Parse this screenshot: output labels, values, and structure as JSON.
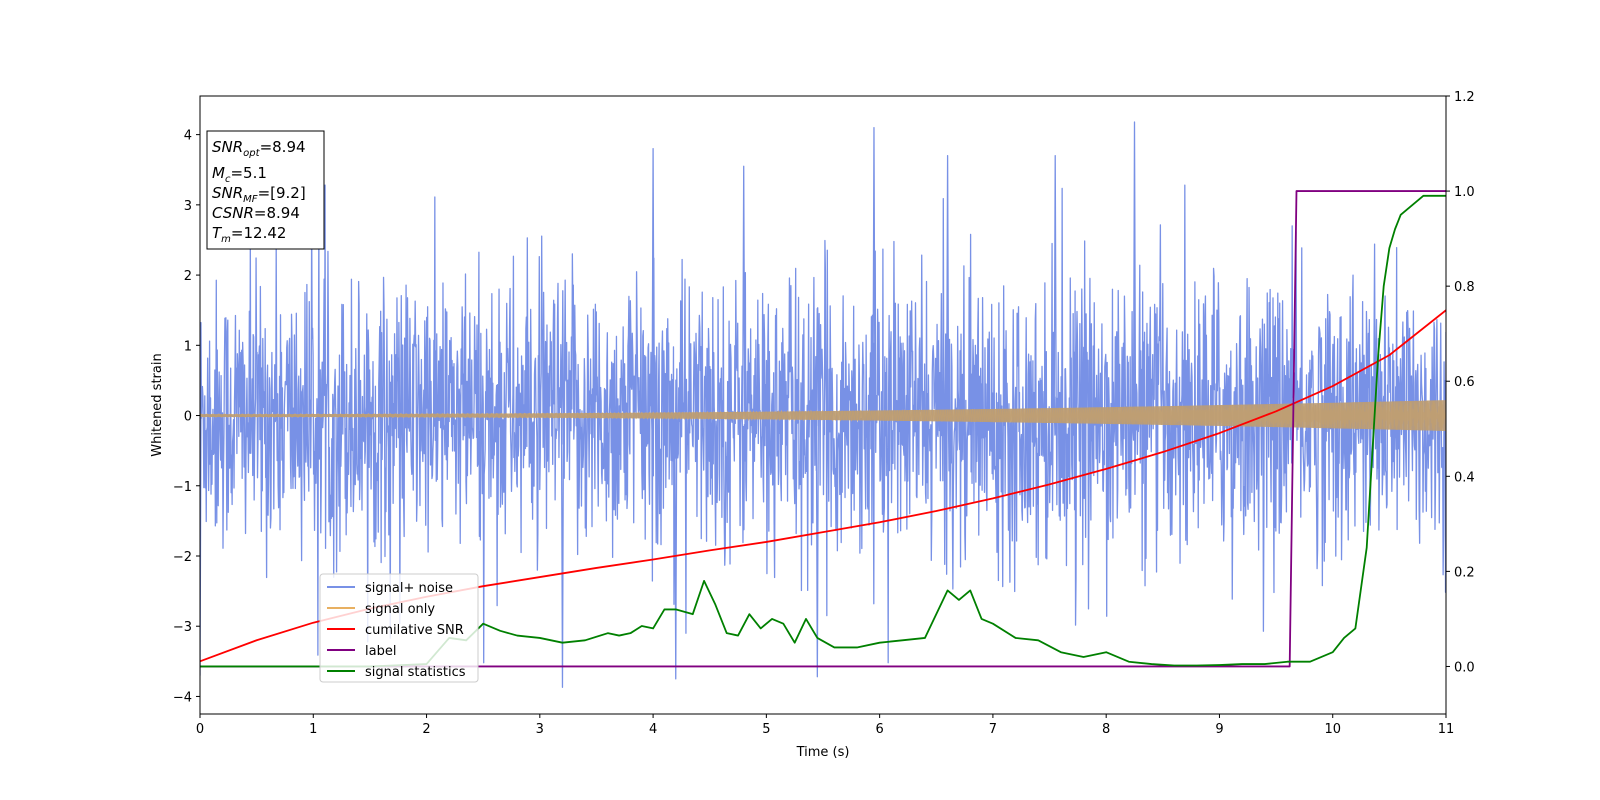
{
  "chart_data": {
    "type": "line",
    "xlabel": "Time (s)",
    "ylabel": "Whitened strain",
    "xlim": [
      0,
      11
    ],
    "ylim_left": [
      -4.25,
      4.55
    ],
    "ylim_right": [
      -0.1,
      1.2
    ],
    "x_ticks": [
      0,
      1,
      2,
      3,
      4,
      5,
      6,
      7,
      8,
      9,
      10,
      11
    ],
    "y_ticks_left": [
      -4,
      -3,
      -2,
      -1,
      0,
      1,
      2,
      3,
      4
    ],
    "y_ticks_right": [
      "0.0",
      "0.2",
      "0.4",
      "0.6",
      "0.8",
      "1.0",
      "1.2"
    ],
    "y_ticks_right_values": [
      0.0,
      0.2,
      0.4,
      0.6,
      0.8,
      1.0,
      1.2
    ],
    "info_box": {
      "snr_opt": {
        "base": "SNR",
        "sub": "opt",
        "value": "=8.94"
      },
      "mc": {
        "base": "M",
        "sub": "c",
        "value": "=5.1"
      },
      "snr_mf": {
        "base": "SNR",
        "sub": "MF",
        "value": "=[9.2]"
      },
      "csnr": {
        "base": "CSNR",
        "value": "=8.94"
      },
      "tm": {
        "base": "T",
        "sub": "m",
        "value": "=12.42"
      }
    },
    "series": [
      {
        "name": "signal+ noise",
        "axis": "left",
        "color": "#7891e6",
        "kind": "noise",
        "noise_envelope": {
          "typical_max": 2.2,
          "typical_min": -2.2,
          "peak_max": 4.18,
          "peak_min": -3.87
        },
        "spikes": [
          [
            0.0,
            -3.7
          ],
          [
            3.2,
            -3.87
          ],
          [
            4.2,
            -3.75
          ],
          [
            5.45,
            -3.72
          ],
          [
            5.95,
            4.1
          ],
          [
            8.25,
            4.18
          ],
          [
            4.0,
            3.8
          ],
          [
            4.8,
            3.55
          ],
          [
            7.55,
            3.7
          ],
          [
            6.6,
            3.7
          ]
        ]
      },
      {
        "name": "signal only",
        "axis": "left",
        "color": "#e8b061",
        "kind": "chirp",
        "amplitude_start": 0.02,
        "amplitude_end": 0.22,
        "fill_color": "#bb9c73"
      },
      {
        "name": "cumilative SNR",
        "axis": "left",
        "color": "#ff0000",
        "x": [
          0,
          0.5,
          1,
          1.5,
          2,
          2.5,
          3,
          3.5,
          4,
          4.5,
          5,
          5.5,
          6,
          6.5,
          7,
          7.5,
          8,
          8.5,
          9,
          9.5,
          10,
          10.5,
          11
        ],
        "values": [
          -3.5,
          -3.2,
          -2.95,
          -2.75,
          -2.58,
          -2.43,
          -2.3,
          -2.17,
          -2.05,
          -1.92,
          -1.8,
          -1.66,
          -1.52,
          -1.36,
          -1.18,
          -0.98,
          -0.76,
          -0.52,
          -0.25,
          0.06,
          0.42,
          0.86,
          1.5
        ]
      },
      {
        "name": "label",
        "axis": "right",
        "color": "#800080",
        "x": [
          0,
          9.62,
          9.68,
          11
        ],
        "values": [
          0.0,
          0.0,
          1.0,
          1.0
        ]
      },
      {
        "name": "signal statistics",
        "axis": "right",
        "color": "#008000",
        "x": [
          0,
          1.5,
          2.0,
          2.2,
          2.35,
          2.5,
          2.65,
          2.8,
          3.0,
          3.2,
          3.4,
          3.6,
          3.7,
          3.8,
          3.9,
          4.0,
          4.1,
          4.2,
          4.35,
          4.45,
          4.55,
          4.65,
          4.75,
          4.85,
          4.95,
          5.05,
          5.15,
          5.25,
          5.35,
          5.45,
          5.6,
          5.8,
          6.0,
          6.2,
          6.4,
          6.6,
          6.7,
          6.8,
          6.9,
          7.0,
          7.2,
          7.4,
          7.6,
          7.8,
          8.0,
          8.2,
          8.4,
          8.6,
          8.8,
          9.0,
          9.2,
          9.4,
          9.6,
          9.8,
          10.0,
          10.1,
          10.2,
          10.3,
          10.35,
          10.4,
          10.45,
          10.5,
          10.55,
          10.6,
          10.7,
          10.8,
          10.9,
          11.0
        ],
        "values": [
          0.0,
          0.0,
          0.005,
          0.06,
          0.055,
          0.09,
          0.075,
          0.065,
          0.06,
          0.05,
          0.055,
          0.07,
          0.065,
          0.07,
          0.085,
          0.08,
          0.12,
          0.12,
          0.11,
          0.18,
          0.13,
          0.07,
          0.065,
          0.11,
          0.08,
          0.1,
          0.09,
          0.05,
          0.1,
          0.06,
          0.04,
          0.04,
          0.05,
          0.055,
          0.06,
          0.16,
          0.14,
          0.16,
          0.1,
          0.09,
          0.06,
          0.055,
          0.03,
          0.02,
          0.03,
          0.01,
          0.005,
          0.002,
          0.002,
          0.003,
          0.005,
          0.005,
          0.01,
          0.01,
          0.03,
          0.06,
          0.08,
          0.25,
          0.45,
          0.65,
          0.8,
          0.88,
          0.92,
          0.95,
          0.97,
          0.99,
          0.99,
          0.99
        ]
      }
    ],
    "legend": {
      "placement": "lower-left",
      "entries": [
        {
          "label": "signal+ noise",
          "color": "#7891e6"
        },
        {
          "label": "signal only",
          "color": "#e8b061"
        },
        {
          "label": "cumilative SNR",
          "color": "#ff0000"
        },
        {
          "label": "label",
          "color": "#800080"
        },
        {
          "label": "signal statistics",
          "color": "#008000"
        }
      ]
    }
  }
}
